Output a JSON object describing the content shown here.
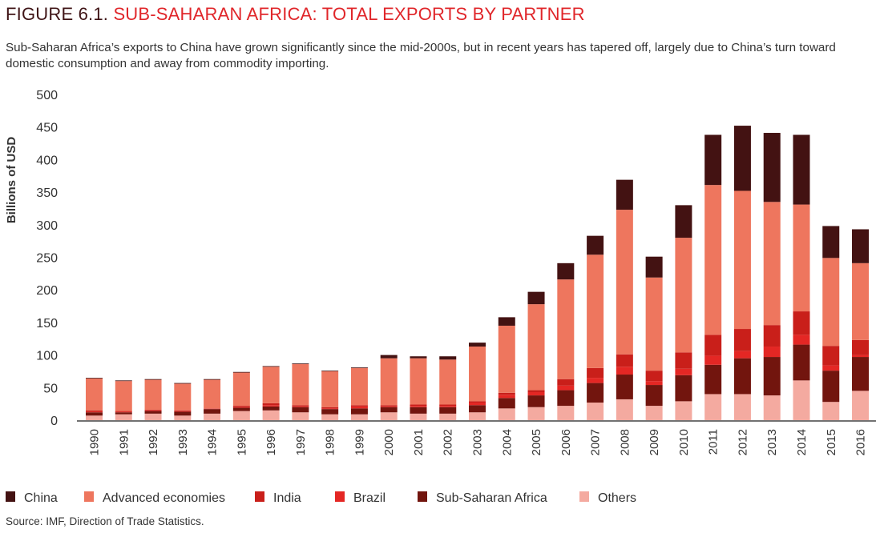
{
  "header": {
    "figure_label": "FIGURE 6.1.",
    "title": "SUB-SAHARAN AFRICA: TOTAL EXPORTS BY PARTNER",
    "subtitle": "Sub-Saharan Africa’s exports to China have grown significantly since the mid-2000s, but in recent years has tapered off, largely due to China’s turn toward domestic consumption and away from commodity importing.",
    "source": "Source: IMF, Direction of Trade Statistics."
  },
  "chart_data": {
    "type": "bar",
    "stacked": true,
    "title": "SUB-SAHARAN AFRICA: TOTAL EXPORTS BY PARTNER",
    "xlabel": "",
    "ylabel": "Billions of USD",
    "ylim": [
      0,
      500
    ],
    "yticks": [
      0,
      50,
      100,
      150,
      200,
      250,
      300,
      350,
      400,
      450,
      500
    ],
    "grid": false,
    "legend_position": "bottom",
    "categories": [
      "1990",
      "1991",
      "1992",
      "1993",
      "1994",
      "1995",
      "1996",
      "1997",
      "1998",
      "1999",
      "2000",
      "2001",
      "2002",
      "2003",
      "2004",
      "2005",
      "2006",
      "2007",
      "2008",
      "2009",
      "2010",
      "2011",
      "2012",
      "2013",
      "2014",
      "2015",
      "2016"
    ],
    "series": [
      {
        "name": "Others",
        "color": "#f4aaa0",
        "values": [
          7,
          9,
          10,
          7,
          10,
          14,
          15,
          12,
          9,
          9,
          12,
          10,
          10,
          12,
          18,
          20,
          22,
          27,
          32,
          22,
          29,
          40,
          40,
          38,
          61,
          28,
          45
        ]
      },
      {
        "name": "Sub-Saharan Africa",
        "color": "#72150e",
        "values": [
          5,
          3,
          4,
          6,
          7,
          5,
          6,
          8,
          8,
          9,
          8,
          10,
          10,
          11,
          16,
          18,
          24,
          30,
          38,
          32,
          40,
          45,
          55,
          59,
          55,
          48,
          52
        ]
      },
      {
        "name": "Brazil",
        "color": "#e42724",
        "values": [
          1,
          1,
          1,
          1,
          0.5,
          1,
          2,
          1,
          1,
          3,
          1,
          2,
          2,
          4,
          5,
          5,
          7,
          8,
          12,
          6,
          10,
          14,
          11,
          16,
          15,
          8,
          3
        ]
      },
      {
        "name": "India",
        "color": "#c91f1a",
        "values": [
          2,
          1,
          1,
          1,
          0.5,
          2,
          3,
          2,
          2,
          2,
          2,
          2,
          2,
          2,
          3,
          3,
          10,
          15,
          19,
          16,
          25,
          32,
          34,
          33,
          36,
          30,
          23
        ]
      },
      {
        "name": "Advanced economies",
        "color": "#ee765e",
        "values": [
          49,
          46,
          46,
          41,
          44,
          51,
          56,
          63,
          55,
          57,
          72,
          71,
          69,
          84,
          103,
          132,
          153,
          174,
          222,
          143,
          176,
          230,
          212,
          189,
          164,
          135,
          118
        ]
      },
      {
        "name": "China",
        "color": "#431212",
        "values": [
          1,
          1,
          1,
          1,
          1,
          1,
          1,
          1,
          1,
          1,
          5,
          3,
          5,
          6,
          13,
          19,
          25,
          29,
          46,
          32,
          50,
          77,
          100,
          106,
          107,
          49,
          52
        ]
      }
    ],
    "legend_order": [
      "China",
      "Advanced economies",
      "India",
      "Brazil",
      "Sub-Saharan Africa",
      "Others"
    ]
  }
}
